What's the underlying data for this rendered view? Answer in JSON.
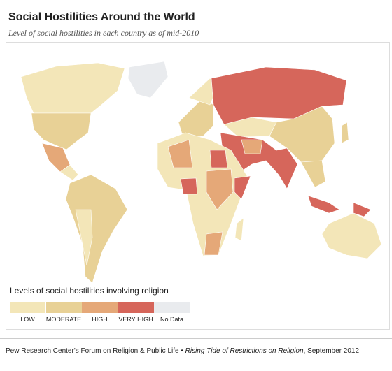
{
  "header": {
    "title": "Social Hostilities Around the World",
    "subtitle": "Level of social hostilities in each country as of mid-2010"
  },
  "legend": {
    "title": "Levels of social hostilities involving religion",
    "items": [
      {
        "label": "LOW",
        "color": "#f3e6b8"
      },
      {
        "label": "MODERATE",
        "color": "#e8d196"
      },
      {
        "label": "HIGH",
        "color": "#e5a878"
      },
      {
        "label": "VERY HIGH",
        "color": "#d6665b"
      },
      {
        "label": "No Data",
        "color": "#e9ebee"
      }
    ]
  },
  "footer": {
    "source": "Pew Research Center's Forum on Religion & Public Life • ",
    "report": "Rising Tide of Restrictions on Religion",
    "date": ", September 2012"
  }
}
